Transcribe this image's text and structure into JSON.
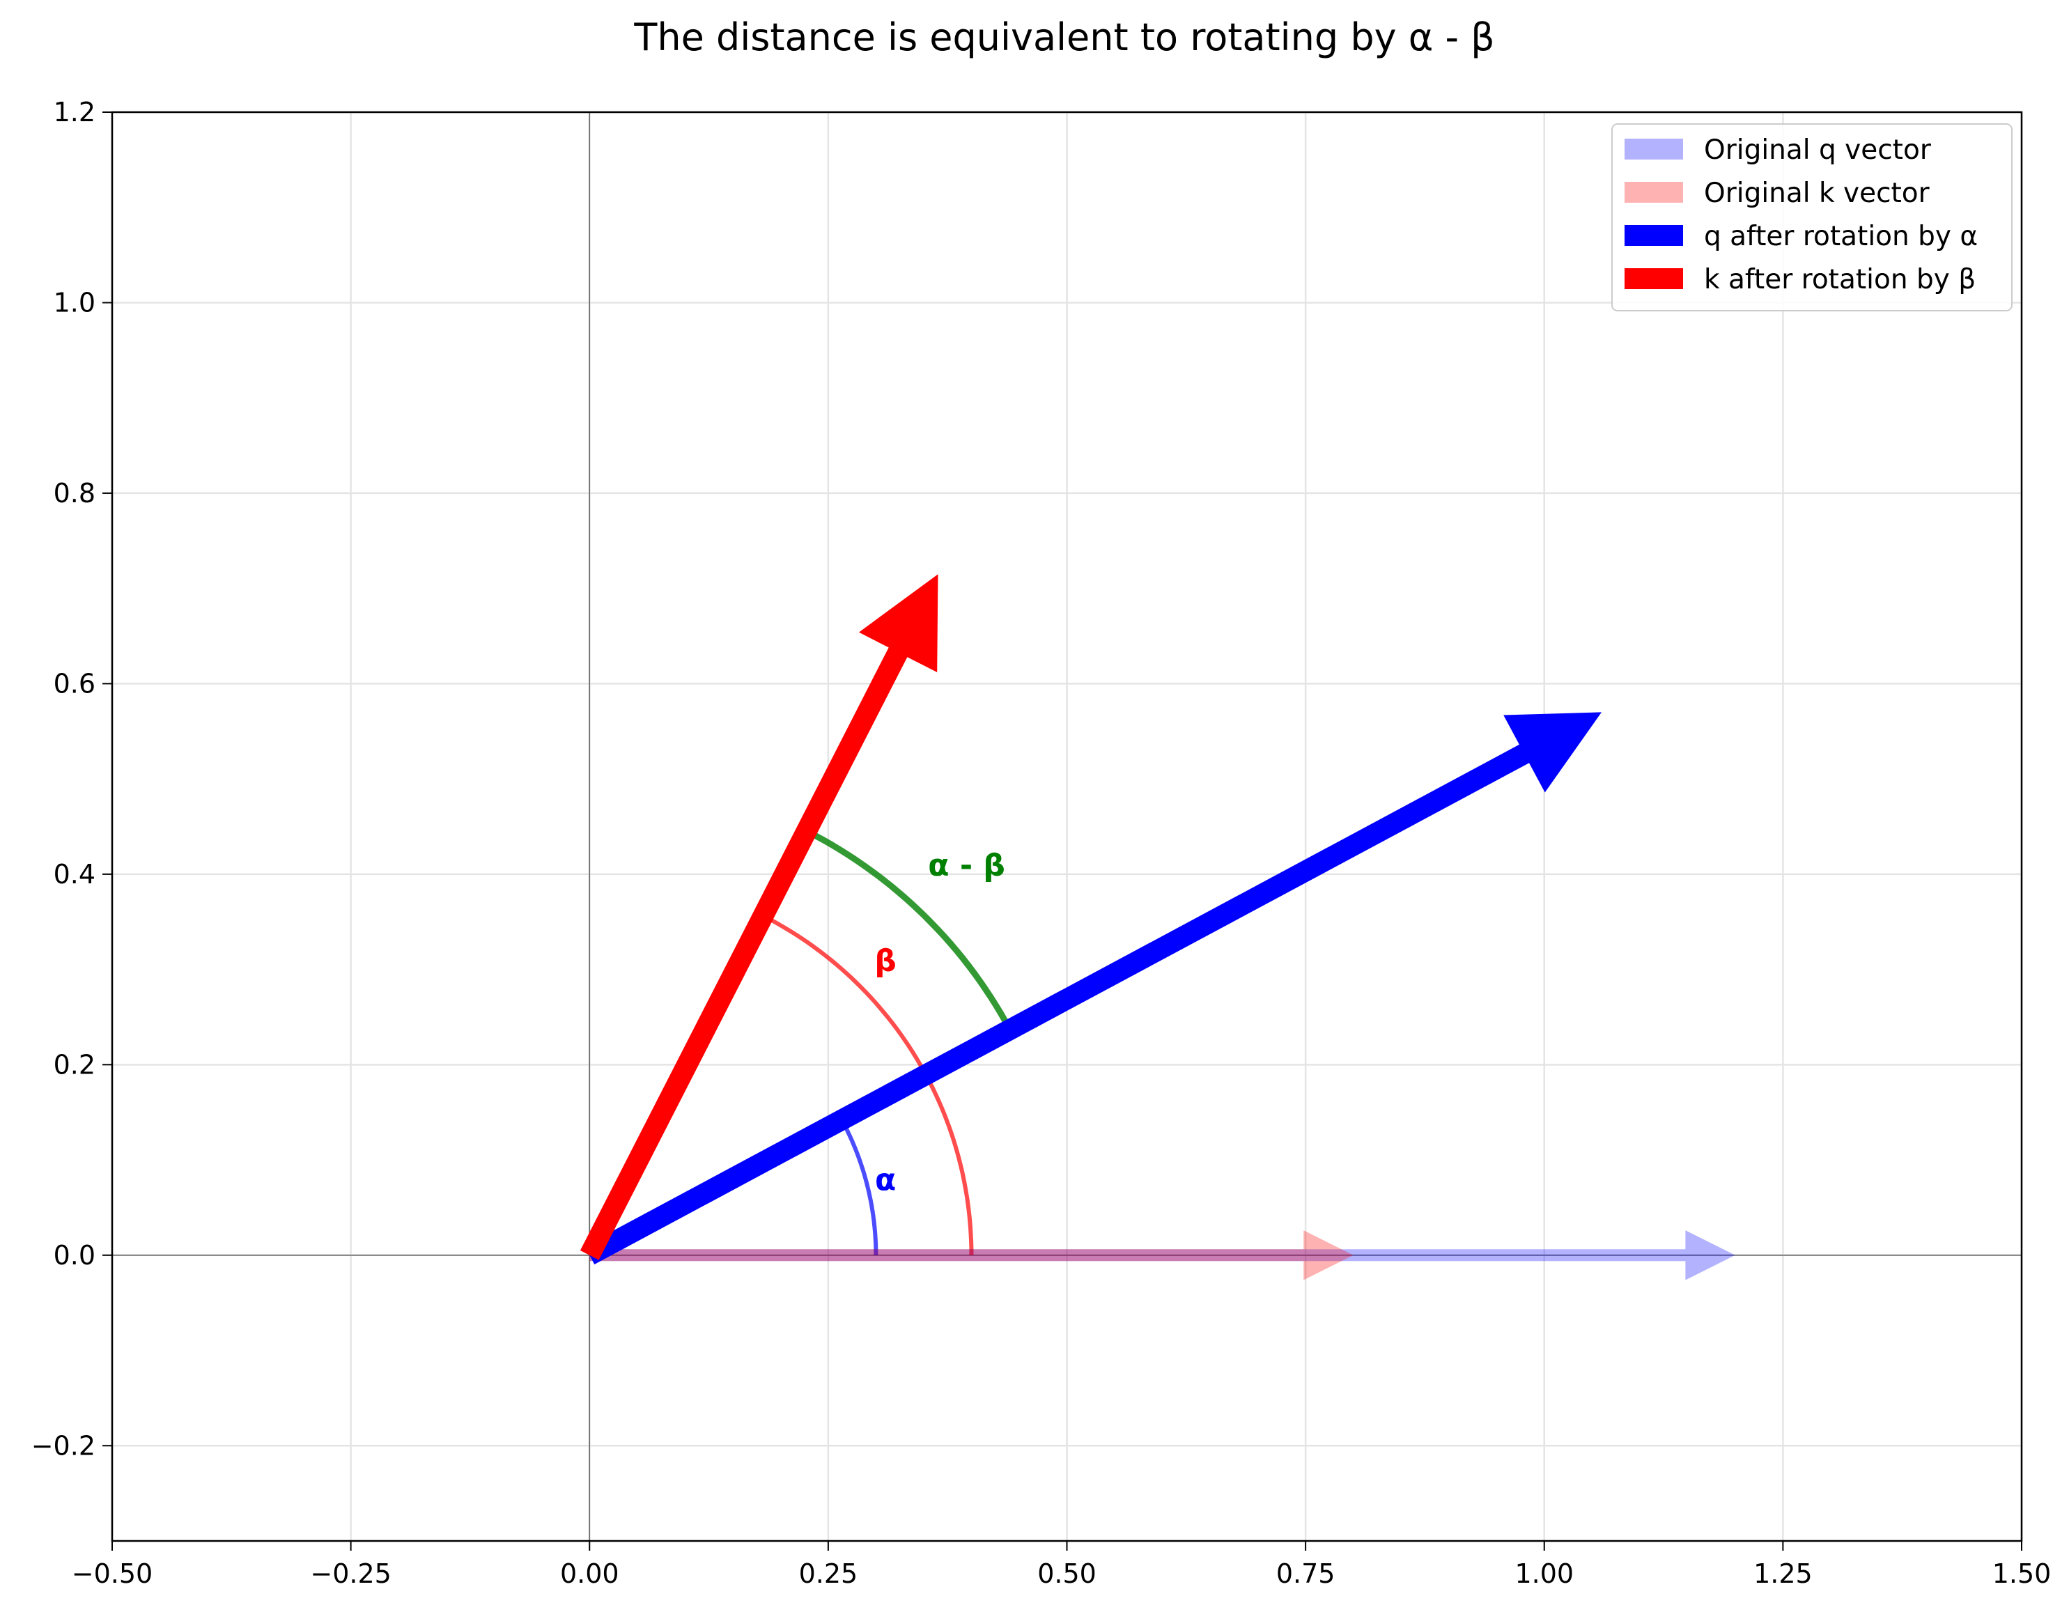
{
  "chart_data": {
    "type": "vector",
    "title": "The distance is equivalent to rotating by α - β",
    "xlabel": "",
    "ylabel": "",
    "xlim": [
      -0.5,
      1.5
    ],
    "ylim": [
      -0.3,
      1.2
    ],
    "x_ticks": [
      -0.5,
      -0.25,
      0.0,
      0.25,
      0.5,
      0.75,
      1.0,
      1.25,
      1.5
    ],
    "x_tick_labels": [
      "−0.50",
      "−0.25",
      "0.00",
      "0.25",
      "0.50",
      "0.75",
      "1.00",
      "1.25",
      "1.50"
    ],
    "y_ticks": [
      -0.2,
      0.0,
      0.2,
      0.4,
      0.6,
      0.8,
      1.0,
      1.2
    ],
    "y_tick_labels": [
      "−0.2",
      "0.0",
      "0.2",
      "0.4",
      "0.6",
      "0.8",
      "1.0",
      "1.2"
    ],
    "grid": true,
    "legend_position": "top-right",
    "series": [
      {
        "name": "Original q vector",
        "color": "#0000ff",
        "alpha": 0.3,
        "start": [
          0,
          0
        ],
        "end": [
          1.2,
          0.0
        ],
        "weight": "thin"
      },
      {
        "name": "Original k vector",
        "color": "#ff0000",
        "alpha": 0.3,
        "start": [
          0,
          0
        ],
        "end": [
          0.8,
          0.0
        ],
        "weight": "thin"
      },
      {
        "name": "q after rotation by α",
        "color": "#0000ff",
        "alpha": 1.0,
        "start": [
          0,
          0
        ],
        "end": [
          1.06,
          0.57
        ],
        "weight": "thick"
      },
      {
        "name": "k after rotation by β",
        "color": "#ff0000",
        "alpha": 1.0,
        "start": [
          0,
          0
        ],
        "end": [
          0.365,
          0.715
        ],
        "weight": "thick"
      }
    ],
    "angle_arcs": [
      {
        "label": "α",
        "color": "#0000ff",
        "alpha": 0.7,
        "radius": 0.3,
        "from_deg": 0,
        "to_deg": 28.3,
        "label_at": [
          0.31,
          0.08
        ],
        "weight": "thin"
      },
      {
        "label": "β",
        "color": "#ff0000",
        "alpha": 0.7,
        "radius": 0.4,
        "from_deg": 0,
        "to_deg": 62.5,
        "label_at": [
          0.31,
          0.31
        ],
        "weight": "thin"
      },
      {
        "label": "α - β",
        "color": "#008000",
        "alpha": 0.8,
        "radius": 0.5,
        "from_deg": 28.3,
        "to_deg": 62.5,
        "label_at": [
          0.395,
          0.41
        ],
        "weight": "medium"
      }
    ]
  }
}
